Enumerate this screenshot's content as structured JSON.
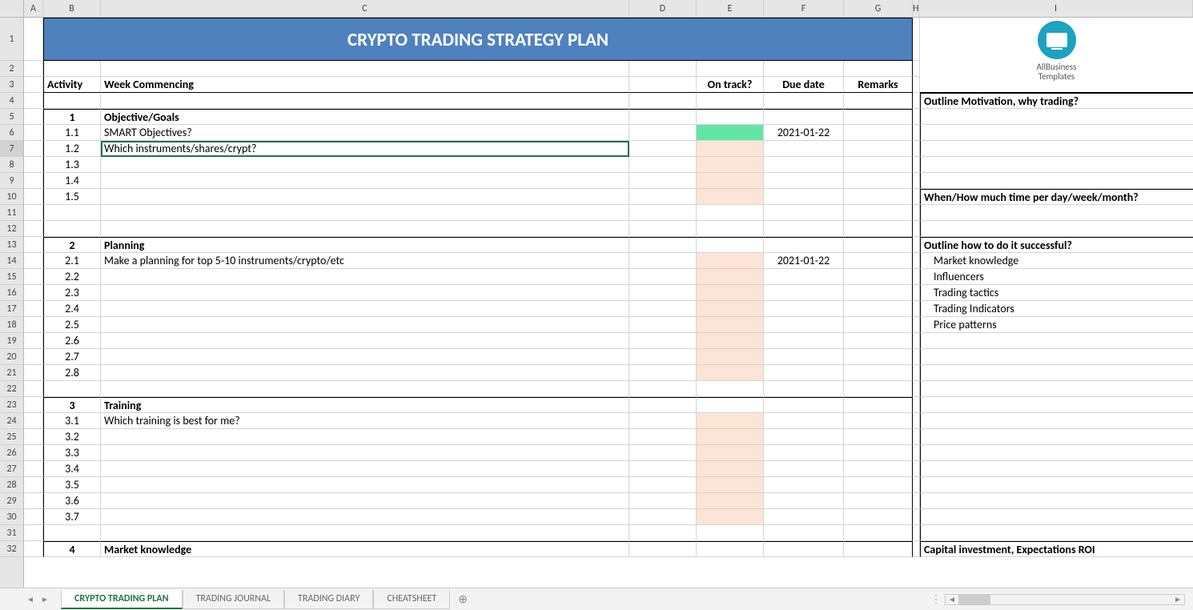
{
  "title": "CRYPTO TRADING STRATEGY PLAN",
  "columns": {
    "letters": [
      "A",
      "B",
      "C",
      "D",
      "E",
      "F",
      "G",
      "H",
      "I"
    ],
    "widths": [
      24,
      72,
      660,
      84,
      84,
      100,
      86,
      8,
      342
    ]
  },
  "row_heights": {
    "tall_row": 1
  },
  "headers": {
    "activity": "Activity",
    "week": "Week Commencing",
    "ontrack": "On track?",
    "due": "Due date",
    "remarks": "Remarks"
  },
  "sections": [
    {
      "num": "1",
      "title": "Objective/Goals",
      "rows": [
        {
          "id": "1.1",
          "text": "SMART Objectives?",
          "ontrack_color": "green",
          "due": "2021-01-22"
        },
        {
          "id": "1.2",
          "text": "Which instruments/shares/crypt?",
          "ontrack_color": "peach"
        },
        {
          "id": "1.3",
          "text": "",
          "ontrack_color": "peach"
        },
        {
          "id": "1.4",
          "text": "",
          "ontrack_color": "peach"
        },
        {
          "id": "1.5",
          "text": "",
          "ontrack_color": "peach"
        }
      ],
      "trailing_blank": 2
    },
    {
      "num": "2",
      "title": "Planning",
      "rows": [
        {
          "id": "2.1",
          "text": "Make a planning for top 5-10 instruments/crypto/etc",
          "ontrack_color": "peach",
          "due": "2021-01-22"
        },
        {
          "id": "2.2",
          "text": "",
          "ontrack_color": "peach"
        },
        {
          "id": "2.3",
          "text": "",
          "ontrack_color": "peach"
        },
        {
          "id": "2.4",
          "text": "",
          "ontrack_color": "peach"
        },
        {
          "id": "2.5",
          "text": "",
          "ontrack_color": "peach"
        },
        {
          "id": "2.6",
          "text": "",
          "ontrack_color": "peach"
        },
        {
          "id": "2.7",
          "text": "",
          "ontrack_color": "peach"
        },
        {
          "id": "2.8",
          "text": "",
          "ontrack_color": "peach"
        }
      ],
      "trailing_blank": 1
    },
    {
      "num": "3",
      "title": "Training",
      "rows": [
        {
          "id": "3.1",
          "text": "Which training is best for me?",
          "ontrack_color": "peach"
        },
        {
          "id": "3.2",
          "text": "",
          "ontrack_color": "peach"
        },
        {
          "id": "3.3",
          "text": "",
          "ontrack_color": "peach"
        },
        {
          "id": "3.4",
          "text": "",
          "ontrack_color": "peach"
        },
        {
          "id": "3.5",
          "text": "",
          "ontrack_color": "peach"
        },
        {
          "id": "3.6",
          "text": "",
          "ontrack_color": "peach"
        },
        {
          "id": "3.7",
          "text": "",
          "ontrack_color": "peach"
        }
      ],
      "trailing_blank": 1
    },
    {
      "num": "4",
      "title": "Market knowledge",
      "rows": [],
      "trailing_blank": 0
    }
  ],
  "side_panel": {
    "brand_top": "AllBusiness",
    "brand_bottom": "Templates",
    "blocks": [
      {
        "title": "Outline Motivation, why trading?",
        "items": [],
        "span": 6
      },
      {
        "title": "When/How much time per day/week/month?",
        "items": [],
        "span": 3
      },
      {
        "title": "Outline how to do it successful?",
        "items": [
          "Market knowledge",
          "Influencers",
          "Trading tactics",
          "Trading Indicators",
          "Price patterns"
        ],
        "span": 19
      },
      {
        "title": "Capital investment, Expectations ROI",
        "items": [],
        "span": 1
      }
    ]
  },
  "tabs": [
    "CRYPTO TRADING PLAN",
    "TRADING JOURNAL",
    "TRADING DIARY",
    "CHEATSHEET"
  ],
  "active_tab": 0,
  "selected_row": 7,
  "colors": {
    "banner_bg": "#4f81bd",
    "peach": "#fce4d6",
    "green": "#63e6a5",
    "tab_active": "#217346"
  }
}
